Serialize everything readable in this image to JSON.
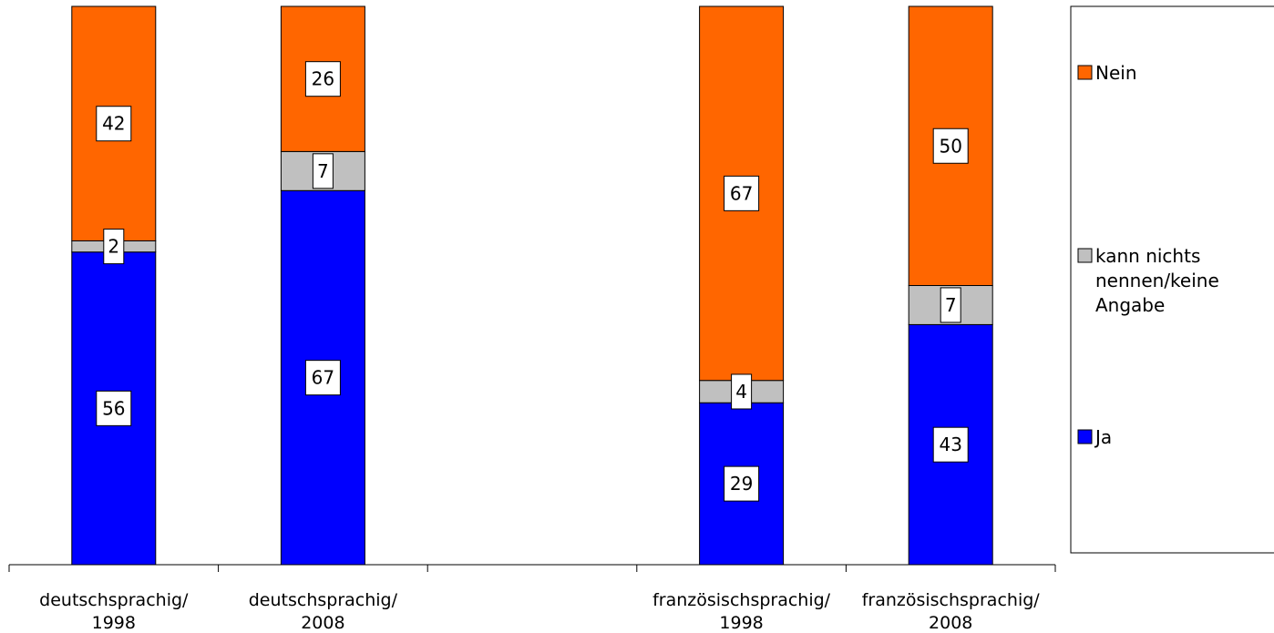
{
  "chart_data": {
    "type": "bar",
    "stacked": true,
    "percent_stacked": true,
    "categories": [
      [
        "deutschsprachig/",
        "1998"
      ],
      [
        "deutschsprachig/",
        "2008"
      ],
      [
        "",
        ""
      ],
      [
        "französischsprachig/",
        "1998"
      ],
      [
        "französischsprachig/",
        "2008"
      ]
    ],
    "series": [
      {
        "name": "Ja",
        "color": "#0000ff",
        "values": [
          56,
          67,
          null,
          29,
          43
        ]
      },
      {
        "name": "kann nichts nennen/keine Angabe",
        "color": "#c0c0c0",
        "values": [
          2,
          7,
          null,
          4,
          7
        ]
      },
      {
        "name": "Nein",
        "color": "#ff6600",
        "values": [
          42,
          26,
          null,
          67,
          50
        ]
      }
    ],
    "legend": {
      "position": "right",
      "items": [
        {
          "series": "Nein",
          "lines": [
            "Nein"
          ]
        },
        {
          "series": "kann nichts nennen/keine Angabe",
          "lines": [
            "kann nichts",
            "nennen/keine",
            "Angabe"
          ]
        },
        {
          "series": "Ja",
          "lines": [
            "Ja"
          ]
        }
      ]
    },
    "ylim": [
      0,
      100
    ],
    "grid": false,
    "title": "",
    "xlabel": "",
    "ylabel": ""
  }
}
